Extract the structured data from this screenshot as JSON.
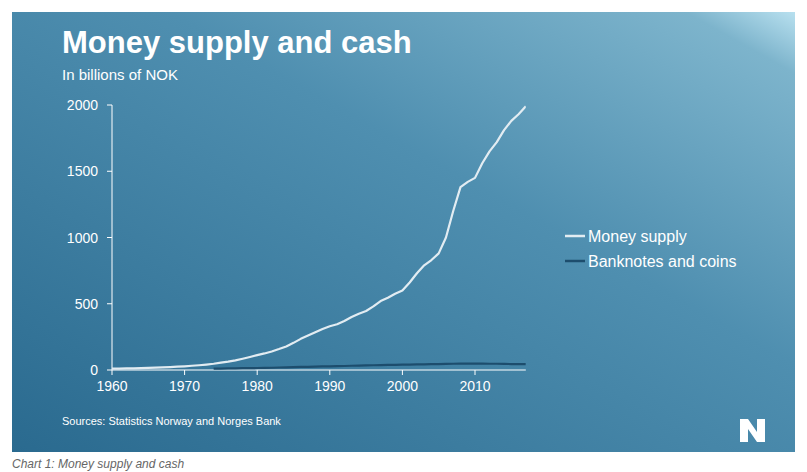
{
  "chart_data": {
    "type": "line",
    "title": "Money supply and cash",
    "subtitle": "In billions of NOK",
    "source": "Sources: Statistics Norway and Norges Bank",
    "caption": "Chart 1: Money supply and cash",
    "x": [
      1960,
      1961,
      1962,
      1963,
      1964,
      1965,
      1966,
      1967,
      1968,
      1969,
      1970,
      1971,
      1972,
      1973,
      1974,
      1975,
      1976,
      1977,
      1978,
      1979,
      1980,
      1981,
      1982,
      1983,
      1984,
      1985,
      1986,
      1987,
      1988,
      1989,
      1990,
      1991,
      1992,
      1993,
      1994,
      1995,
      1996,
      1997,
      1998,
      1999,
      2000,
      2001,
      2002,
      2003,
      2004,
      2005,
      2006,
      2007,
      2008,
      2009,
      2010,
      2011,
      2012,
      2013,
      2014,
      2015,
      2016,
      2017
    ],
    "series": [
      {
        "name": "Money supply",
        "color": "#e2ecf2",
        "values": [
          10,
          11,
          12,
          13,
          14,
          16,
          18,
          20,
          22,
          25,
          28,
          32,
          36,
          41,
          47,
          55,
          63,
          73,
          85,
          98,
          112,
          125,
          140,
          158,
          178,
          205,
          235,
          260,
          285,
          310,
          330,
          345,
          370,
          400,
          425,
          445,
          480,
          520,
          545,
          575,
          600,
          660,
          730,
          790,
          830,
          880,
          1000,
          1200,
          1380,
          1420,
          1450,
          1560,
          1650,
          1720,
          1810,
          1880,
          1930,
          1990
        ]
      },
      {
        "name": "Banknotes and coins",
        "color": "#1d4d6d",
        "values": [
          null,
          null,
          null,
          null,
          null,
          null,
          null,
          null,
          null,
          null,
          null,
          null,
          null,
          null,
          10,
          11,
          12,
          13,
          14,
          14,
          15,
          16,
          17,
          19,
          20,
          22,
          23,
          24,
          25,
          27,
          28,
          29,
          30,
          32,
          33,
          35,
          36,
          37,
          38,
          39,
          40,
          41,
          42,
          43,
          44,
          45,
          46,
          47,
          48,
          48,
          48,
          48,
          47,
          47,
          46,
          45,
          45,
          45
        ]
      }
    ],
    "xlim": [
      1960,
      2017
    ],
    "xticks": [
      1960,
      1970,
      1980,
      1990,
      2000,
      2010
    ],
    "ylim": [
      0,
      2000
    ],
    "yticks": [
      0,
      500,
      1000,
      1500,
      2000
    ],
    "grid": false,
    "legend": "right"
  }
}
